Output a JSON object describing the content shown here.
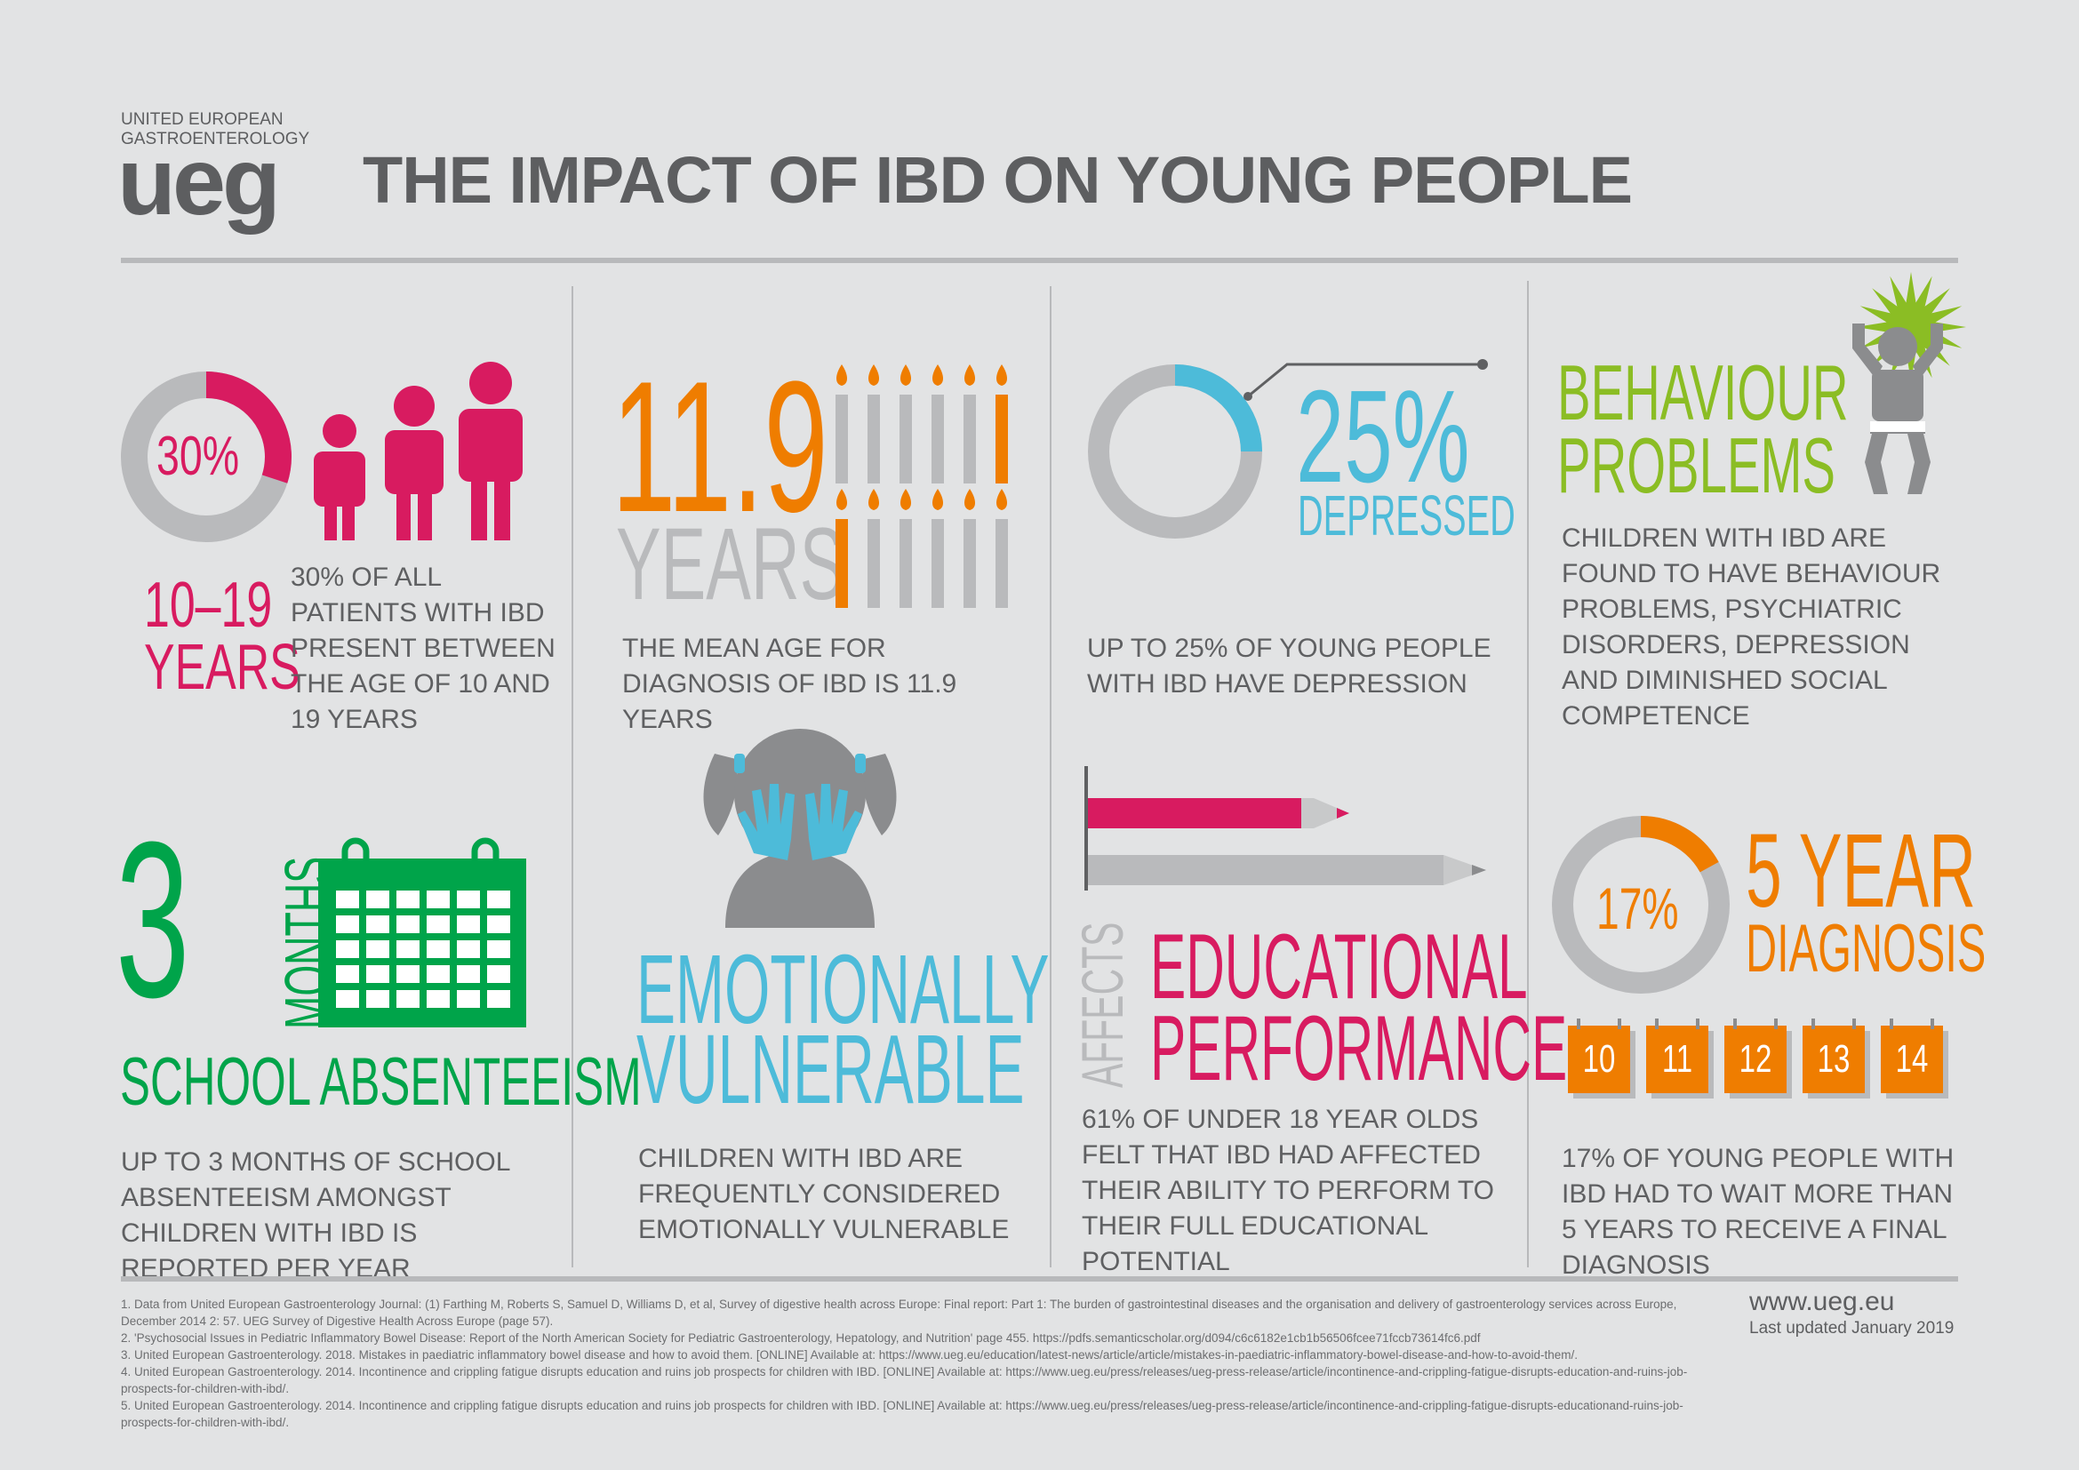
{
  "logo": {
    "line1": "UNITED EUROPEAN",
    "line2": "GASTROENTEROLOGY",
    "mark": "ueg"
  },
  "title": "THE IMPACT OF IBD ON YOUNG PEOPLE",
  "colors": {
    "pink": "#d81b60",
    "orange": "#ef7d00",
    "blue": "#4dbbd9",
    "green": "#8bbd24",
    "dgreen": "#00a44a",
    "grey": "#b9babc",
    "dark": "#5f6062"
  },
  "panels": {
    "age_group": {
      "percent": "30%",
      "percent_value": 30,
      "range": "10–19",
      "unit": "YEARS",
      "text": "30% OF ALL PATIENTS WITH IBD PRESENT BETWEEN THE AGE OF 10 AND 19 YEARS"
    },
    "mean_age": {
      "number": "11.9",
      "unit": "YEARS",
      "text": "THE MEAN AGE FOR DIAGNOSIS OF IBD IS 11.9 YEARS"
    },
    "depression": {
      "percent": "25%",
      "percent_value": 25,
      "label": "DEPRESSED",
      "text": "UP TO 25% OF YOUNG PEOPLE WITH IBD HAVE DEPRESSION"
    },
    "behaviour": {
      "line1": "BEHAVIOUR",
      "line2": "PROBLEMS",
      "text": "CHILDREN WITH IBD ARE FOUND TO HAVE BEHAVIOUR PROBLEMS, PSYCHIATRIC DISORDERS, DEPRESSION AND DIMINISHED SOCIAL COMPETENCE"
    },
    "absenteeism": {
      "number": "3",
      "unit": "MONTHS",
      "label": "SCHOOL ABSENTEEISM",
      "text": "UP TO 3 MONTHS OF SCHOOL ABSENTEEISM AMONGST CHILDREN WITH IBD IS REPORTED PER YEAR"
    },
    "emotional": {
      "line1": "EMOTIONALLY",
      "line2": "VULNERABLE",
      "text": "CHILDREN WITH IBD ARE FREQUENTLY CONSIDERED EMOTIONALLY VULNERABLE"
    },
    "education": {
      "affects": "AFFECTS",
      "line1": "EDUCATIONAL",
      "line2": "PERFORMANCE",
      "text": "61% OF UNDER 18 YEAR OLDS FELT THAT IBD HAD AFFECTED THEIR ABILITY TO PERFORM TO THEIR FULL EDUCATIONAL POTENTIAL",
      "share_value": 61
    },
    "diagnosis": {
      "percent": "17%",
      "percent_value": 17,
      "line1": "5 YEAR",
      "line2": "DIAGNOSIS",
      "years": [
        "10",
        "11",
        "12",
        "13",
        "14"
      ],
      "text": "17% OF YOUNG PEOPLE WITH IBD HAD TO WAIT MORE THAN 5 YEARS TO RECEIVE A FINAL DIAGNOSIS"
    }
  },
  "footnotes": [
    "1. Data from United European Gastroenterology Journal: (1) Farthing M, Roberts S, Samuel D, Williams D, et al, Survey of digestive health across Europe: Final report: Part 1: The burden of gastrointestinal diseases and the organisation and delivery of gastroenterology services across Europe, December 2014 2: 57. UEG Survey of Digestive Health Across Europe (page 57).",
    "2. 'Psychosocial Issues in Pediatric Inflammatory Bowel Disease: Report of the North American Society for Pediatric Gastroenterology, Hepatology, and Nutrition' page 455. https://pdfs.semanticscholar.org/d094/c6c6182e1cb1b56506fcee71fccb73614fc6.pdf",
    "3. United European Gastroenterology. 2018. Mistakes in paediatric inflammatory bowel disease and how to avoid them. [ONLINE] Available at: https://www.ueg.eu/education/latest-news/article/article/mistakes-in-paediatric-inflammatory-bowel-disease-and-how-to-avoid-them/.",
    "4. United European Gastroenterology. 2014. Incontinence and crippling fatigue disrupts education and ruins job prospects for children with IBD. [ONLINE] Available at: https://www.ueg.eu/press/releases/ueg-press-release/article/incontinence-and-crippling-fatigue-disrupts-education-and-ruins-job-prospects-for-children-with-ibd/.",
    "5. United European Gastroenterology. 2014. Incontinence and crippling fatigue disrupts education and ruins job prospects for children with IBD. [ONLINE] Available at: https://www.ueg.eu/press/releases/ueg-press-release/article/incontinence-and-crippling-fatigue-disrupts-educationand-ruins-job-prospects-for-children-with-ibd/."
  ],
  "website": "www.ueg.eu",
  "updated": "Last updated January 2019"
}
